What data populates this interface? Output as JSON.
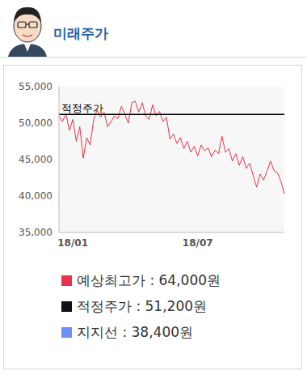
{
  "header": {
    "title": "미래주가"
  },
  "chart_data": {
    "type": "line",
    "categories": [
      null,
      null,
      null,
      null,
      "18/01",
      null,
      null,
      null,
      null,
      null,
      null,
      null,
      null,
      null,
      null,
      null,
      null,
      null,
      null,
      null,
      null,
      null,
      null,
      null,
      null,
      null,
      null,
      null,
      null,
      null,
      null,
      null,
      null,
      null,
      null,
      null,
      null,
      null,
      null,
      null,
      "18/07",
      null,
      null,
      null,
      null,
      null,
      null,
      null,
      null,
      null,
      null,
      null,
      null,
      null,
      null,
      null,
      null,
      null,
      null,
      null,
      null,
      null,
      null,
      null,
      null,
      null
    ],
    "series": [
      {
        "color": "#e8334a",
        "values": [
          51000,
          50200,
          51300,
          49000,
          50500,
          47500,
          49500,
          45200,
          48000,
          47000,
          50500,
          51800,
          50800,
          51500,
          49500,
          50200,
          51000,
          50600,
          52300,
          51200,
          50000,
          52800,
          53000,
          51500,
          52800,
          51000,
          50500,
          52500,
          51000,
          51600,
          50200,
          50800,
          47800,
          48500,
          47200,
          48000,
          46500,
          47500,
          46000,
          46800,
          45500,
          47000,
          46200,
          46600,
          45400,
          46300,
          45800,
          48200,
          46000,
          46500,
          44800,
          45800,
          44200,
          45400,
          43800,
          44500,
          42800,
          41200,
          43000,
          42200,
          43400,
          44800,
          43500,
          43200,
          42000,
          40300
        ]
      }
    ],
    "ylim": [
      35000,
      55000
    ],
    "yticks": [
      {
        "value": 35000,
        "label": "35,000"
      },
      {
        "value": 40000,
        "label": "40,000"
      },
      {
        "value": 45000,
        "label": "45,000"
      },
      {
        "value": 50000,
        "label": "50,000"
      },
      {
        "value": 55000,
        "label": "55,000"
      }
    ],
    "grid": false,
    "reference_lines": [
      {
        "value": 51200,
        "label": "적정주가",
        "color": "#000000"
      }
    ]
  },
  "legend_items": [
    {
      "text": "예상최고가 : 64,000원",
      "color": "#e8334a"
    },
    {
      "text": "적정주가 : 51,200원",
      "color": "#111111"
    },
    {
      "text": "지지선 : 38,400원",
      "color": "#6c8ef5"
    }
  ]
}
